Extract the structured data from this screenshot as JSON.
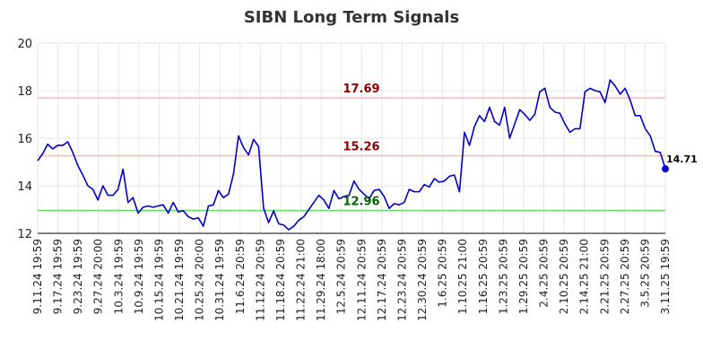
{
  "chart_data": {
    "type": "line",
    "title": "SIBN Long Term Signals",
    "xlabel": "",
    "ylabel": "",
    "ylim": [
      12,
      20
    ],
    "yticks": [
      12,
      14,
      16,
      18,
      20
    ],
    "grid": true,
    "x_tick_labels": [
      "9.11.24 19:59",
      "9.17.24 19:59",
      "9.23.24 19:59",
      "9.27.24 20:00",
      "10.3.24 19:59",
      "10.9.24 19:59",
      "10.15.24 19:59",
      "10.21.24 19:59",
      "10.25.24 20:00",
      "10.31.24 19:59",
      "11.6.24 20:59",
      "11.12.24 20:59",
      "11.18.24 20:59",
      "11.22.24 21:00",
      "11.29.24 18:00",
      "12.5.24 20:59",
      "12.11.24 20:59",
      "12.17.24 20:59",
      "12.23.24 20:59",
      "12.30.24 20:59",
      "1.6.25 20:59",
      "1.10.25 21:00",
      "1.16.25 20:59",
      "1.23.25 20:59",
      "1.29.25 20:59",
      "2.4.25 20:59",
      "2.10.25 20:59",
      "2.14.25 21:00",
      "2.21.25 20:59",
      "2.27.25 20:59",
      "3.5.25 20:59",
      "3.11.25 19:59"
    ],
    "series": [
      {
        "color": "#0000cc",
        "values": [
          15.05,
          15.35,
          15.75,
          15.55,
          15.7,
          15.7,
          15.85,
          15.4,
          14.85,
          14.45,
          14.0,
          13.85,
          13.4,
          14.0,
          13.6,
          13.6,
          13.85,
          14.7,
          13.3,
          13.5,
          12.85,
          13.1,
          13.15,
          13.1,
          13.15,
          13.2,
          12.85,
          13.3,
          12.9,
          12.95,
          12.7,
          12.6,
          12.65,
          12.3,
          13.15,
          13.2,
          13.8,
          13.5,
          13.65,
          14.5,
          16.1,
          15.6,
          15.3,
          15.95,
          15.65,
          13.05,
          12.45,
          12.95,
          12.4,
          12.35,
          12.15,
          12.3,
          12.55,
          12.7,
          13.0,
          13.3,
          13.6,
          13.4,
          13.05,
          13.8,
          13.45,
          13.55,
          13.6,
          14.2,
          13.85,
          13.65,
          13.45,
          13.8,
          13.85,
          13.55,
          13.05,
          13.25,
          13.2,
          13.3,
          13.85,
          13.75,
          13.75,
          14.05,
          13.95,
          14.3,
          14.15,
          14.2,
          14.4,
          14.45,
          13.75,
          16.25,
          15.7,
          16.5,
          16.95,
          16.7,
          17.3,
          16.7,
          16.55,
          17.3,
          16.0,
          16.6,
          17.2,
          17.0,
          16.75,
          17.0,
          17.95,
          18.1,
          17.3,
          17.1,
          17.05,
          16.6,
          16.25,
          16.4,
          16.4,
          17.95,
          18.1,
          18.0,
          17.95,
          17.5,
          18.45,
          18.2,
          17.85,
          18.1,
          17.6,
          16.95,
          16.95,
          16.4,
          16.1,
          15.45,
          15.4,
          14.71
        ]
      }
    ],
    "levels": [
      {
        "value": 17.69,
        "label": "17.69",
        "line_color": "#ffbbbb",
        "label_color": "#8b0000"
      },
      {
        "value": 15.26,
        "label": "15.26",
        "line_color": "#ffbbbb",
        "label_color": "#8b0000"
      },
      {
        "value": 12.96,
        "label": "12.96",
        "line_color": "#66dd66",
        "label_color": "#006400"
      }
    ],
    "last_point": {
      "value": 14.71,
      "label": "14.71",
      "color": "#0000cc"
    }
  }
}
